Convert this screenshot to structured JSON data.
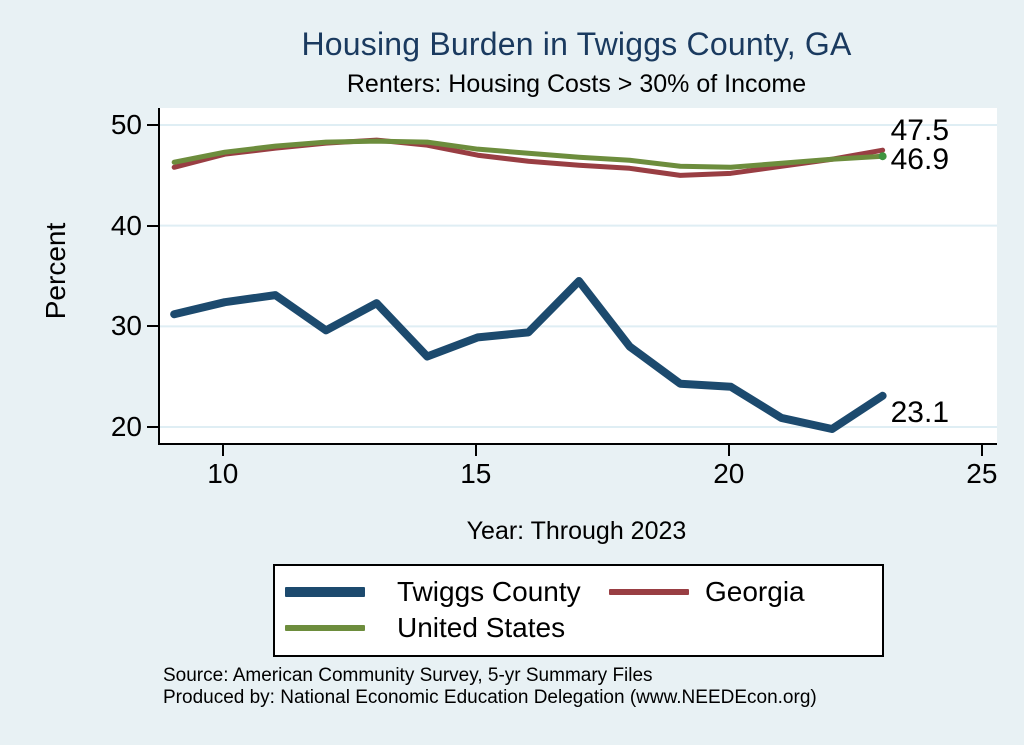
{
  "title": "Housing Burden in Twiggs County, GA",
  "subtitle": "Renters: Housing Costs > 30% of Income",
  "colors": {
    "background": "#e8f1f4",
    "plot_background": "#ffffff",
    "gridline": "#dfeef4",
    "axis": "#000000",
    "title_text": "#1a3a5f",
    "twiggs_county_line": "#1c4a6e",
    "georgia_line": "#993e43",
    "united_states_line": "#6d8d3d",
    "united_states_end_marker": "#3f9440"
  },
  "chart_data": {
    "type": "line",
    "title": "Housing Burden in Twiggs County, GA",
    "subtitle": "Renters: Housing Costs > 30% of Income",
    "xlabel": "Year: Through 2023",
    "ylabel": "Percent",
    "x": [
      9,
      10,
      11,
      12,
      13,
      14,
      15,
      16,
      17,
      18,
      19,
      20,
      21,
      22,
      23
    ],
    "xticks": [
      10,
      15,
      20,
      25
    ],
    "yticks": [
      50,
      40,
      30,
      20
    ],
    "xlim": [
      8.72,
      25.26
    ],
    "ylim": [
      18.41,
      51.69
    ],
    "grid": true,
    "legend_position": "bottom",
    "series": [
      {
        "name": "Twiggs County",
        "color": "#1c4a6e",
        "line_width": 8,
        "values": [
          31.2,
          32.4,
          33.1,
          29.6,
          32.3,
          27.0,
          28.9,
          29.4,
          34.5,
          28.0,
          24.3,
          24.0,
          20.9,
          19.8,
          23.1
        ],
        "end_label": "23.1"
      },
      {
        "name": "Georgia",
        "color": "#993e43",
        "line_width": 5,
        "values": [
          45.8,
          47.1,
          47.7,
          48.2,
          48.5,
          48.0,
          47.0,
          46.4,
          46.0,
          45.7,
          45.0,
          45.2,
          45.9,
          46.6,
          47.5
        ],
        "end_label": "47.5"
      },
      {
        "name": "United States",
        "color": "#6d8d3d",
        "line_width": 5,
        "values": [
          46.3,
          47.3,
          47.9,
          48.3,
          48.4,
          48.3,
          47.6,
          47.2,
          46.8,
          46.5,
          45.9,
          45.8,
          46.2,
          46.6,
          46.9
        ],
        "end_label": "46.9",
        "end_marker": true
      }
    ]
  },
  "footer": {
    "line1": "Source: American Community Survey, 5-yr Summary Files",
    "line2": "Produced by: National Economic Education Delegation (www.NEEDEcon.org)"
  }
}
